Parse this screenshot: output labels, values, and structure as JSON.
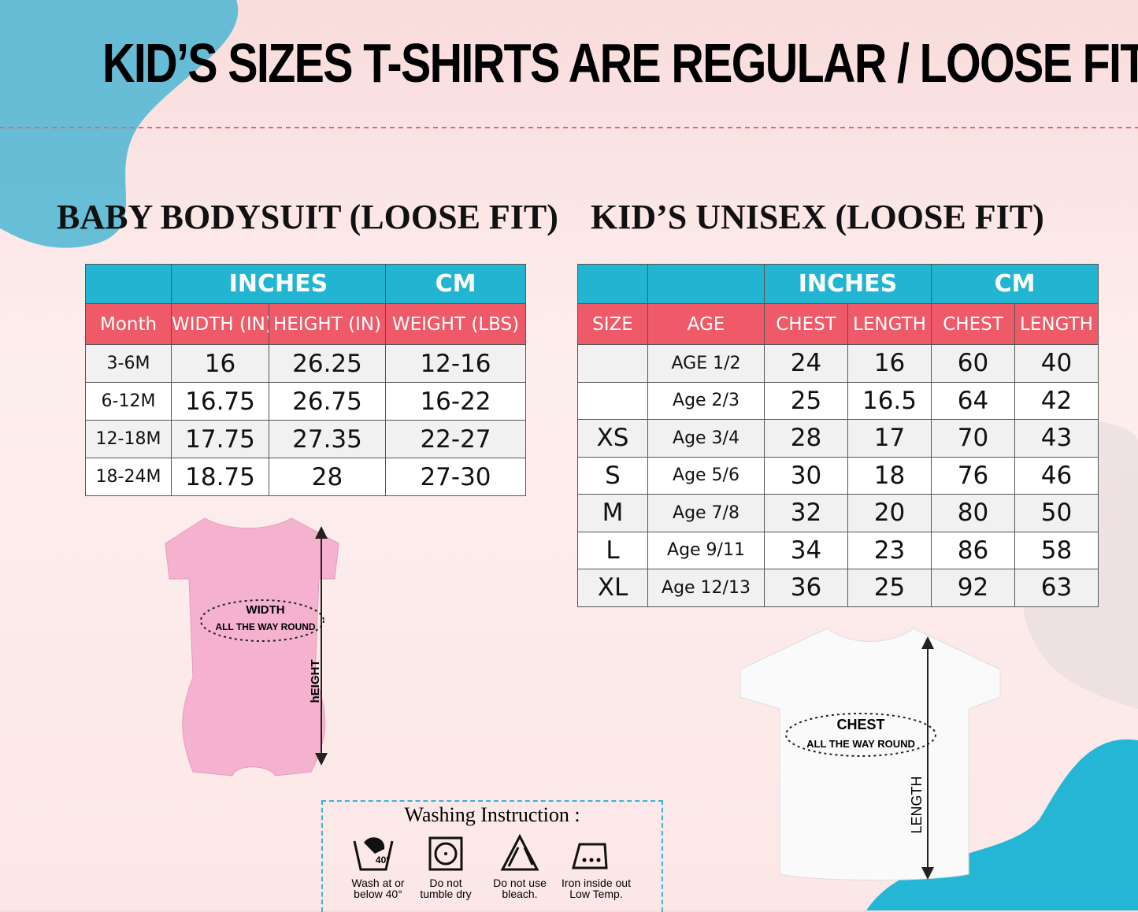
{
  "header": {
    "title": "KID’S SIZES T-SHIRTS ARE REGULAR / LOOSE FIT"
  },
  "baby_table": {
    "heading": "BABY BODYSUIT (LOOSE FIT)",
    "groups": [
      "INCHES",
      "CM"
    ],
    "columns": [
      "Month",
      "WIDTH (IN)",
      "HEIGHT (IN)",
      "WEIGHT (LBS)"
    ],
    "rows": [
      [
        "3-6M",
        "16",
        "26.25",
        "12-16"
      ],
      [
        "6-12M",
        "16.75",
        "26.75",
        "16-22"
      ],
      [
        "12-18M",
        "17.75",
        "27.35",
        "22-27"
      ],
      [
        "18-24M",
        "18.75",
        "28",
        "27-30"
      ]
    ]
  },
  "kids_table": {
    "heading": "KID’S UNISEX (LOOSE FIT)",
    "groups": [
      "INCHES",
      "CM"
    ],
    "columns": [
      "SIZE",
      "AGE",
      "CHEST",
      "LENGTH",
      "CHEST",
      "LENGTH"
    ],
    "rows": [
      [
        null,
        "AGE 1/2",
        "24",
        "16",
        "60",
        "40"
      ],
      [
        null,
        "Age 2/3",
        "25",
        "16.5",
        "64",
        "42"
      ],
      [
        "XS",
        "Age 3/4",
        "28",
        "17",
        "70",
        "43"
      ],
      [
        "S",
        "Age 5/6",
        "30",
        "18",
        "76",
        "46"
      ],
      [
        "M",
        "Age 7/8",
        "32",
        "20",
        "80",
        "50"
      ],
      [
        "L",
        "Age 9/11",
        "34",
        "23",
        "86",
        "58"
      ],
      [
        "XL",
        "Age 12/13",
        "36",
        "25",
        "92",
        "63"
      ]
    ]
  },
  "baby_diagram": {
    "width_label": "WIDTH",
    "width_sub": "ALL THE WAY ROUND",
    "height_label": "hEIGHT"
  },
  "kid_diagram": {
    "chest_label": "CHEST",
    "chest_sub": "ALL THE WAY ROUND",
    "length_label": "LENGTH"
  },
  "washing": {
    "title": "Washing Instruction :",
    "items": [
      {
        "icon_text": "40°",
        "lines": [
          "Wash at or",
          "below 40°"
        ]
      },
      {
        "lines": [
          "Do  not",
          "tumble dry"
        ]
      },
      {
        "lines": [
          "Do not use",
          "bleach."
        ]
      },
      {
        "lines": [
          "Iron inside out",
          "Low Temp."
        ]
      }
    ]
  }
}
